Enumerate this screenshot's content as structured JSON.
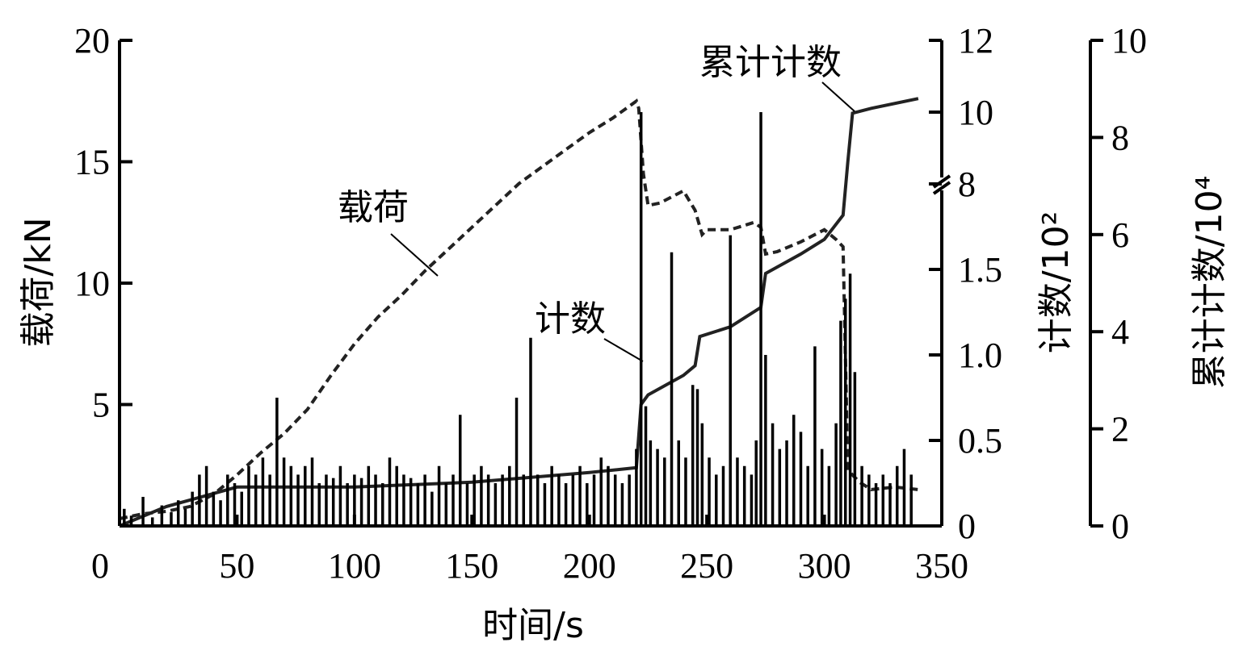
{
  "chart_data": {
    "type": "line",
    "xlabel": "时间/s",
    "xlim": [
      0,
      350
    ],
    "x_ticks": [
      "0",
      "50",
      "100",
      "150",
      "200",
      "250",
      "300",
      "350"
    ],
    "axes": {
      "left": {
        "label": "载荷/kN",
        "ylim": [
          0,
          20
        ],
        "ticks": [
          "5",
          "10",
          "15",
          "20"
        ]
      },
      "mid": {
        "label": "计数/10²",
        "ticks_lower": [
          "0",
          "0.5",
          "1.0",
          "1.5",
          "2"
        ],
        "ticks_upper": [
          "8",
          "10",
          "12"
        ],
        "break_at_tick": "8"
      },
      "right": {
        "label": "累计计数/10⁴",
        "ylim": [
          0,
          10
        ],
        "ticks": [
          "0",
          "2",
          "4",
          "6",
          "8",
          "10"
        ]
      }
    },
    "annotations": {
      "load": "载荷",
      "count": "计数",
      "cumulative": "累计计数"
    },
    "series": [
      {
        "name": "载荷",
        "axis": "left",
        "style": "dashed",
        "x": [
          0,
          10,
          20,
          30,
          40,
          50,
          60,
          70,
          80,
          90,
          100,
          110,
          120,
          130,
          140,
          150,
          160,
          170,
          180,
          190,
          200,
          210,
          220,
          221,
          223,
          225,
          230,
          240,
          245,
          248,
          250,
          260,
          270,
          273,
          275,
          280,
          290,
          300,
          305,
          308,
          310,
          315,
          320,
          330,
          340
        ],
        "y": [
          0.3,
          0.5,
          0.6,
          0.8,
          1.3,
          2.1,
          3.0,
          3.8,
          4.8,
          6.2,
          7.5,
          8.6,
          9.5,
          10.5,
          11.4,
          12.3,
          13.2,
          14.1,
          14.8,
          15.5,
          16.2,
          16.8,
          17.5,
          17.2,
          14.5,
          13.2,
          13.3,
          13.8,
          13.0,
          12.0,
          12.2,
          12.2,
          12.5,
          12.3,
          11.2,
          11.3,
          11.7,
          12.2,
          11.8,
          11.5,
          2.3,
          1.8,
          1.5,
          1.6,
          1.5
        ]
      },
      {
        "name": "累计计数",
        "axis": "right",
        "style": "solid",
        "x": [
          0,
          20,
          50,
          100,
          150,
          200,
          220,
          222,
          225,
          240,
          245,
          247,
          260,
          273,
          275,
          290,
          300,
          308,
          310,
          312,
          320,
          340
        ],
        "y": [
          0,
          0.4,
          0.8,
          0.8,
          0.9,
          1.1,
          1.2,
          2.5,
          2.7,
          3.1,
          3.3,
          3.9,
          4.1,
          4.5,
          5.2,
          5.6,
          5.9,
          6.4,
          7.5,
          8.5,
          8.6,
          8.8
        ]
      },
      {
        "name": "计数",
        "axis": "mid",
        "style": "spikes",
        "x": [
          2,
          5,
          10,
          14,
          18,
          22,
          25,
          28,
          31,
          34,
          37,
          40,
          43,
          46,
          49,
          52,
          55,
          58,
          61,
          64,
          67,
          70,
          73,
          76,
          79,
          82,
          85,
          88,
          91,
          94,
          97,
          100,
          103,
          106,
          109,
          112,
          115,
          118,
          121,
          124,
          127,
          130,
          133,
          136,
          139,
          142,
          145,
          148,
          151,
          154,
          157,
          160,
          163,
          166,
          169,
          172,
          175,
          178,
          181,
          184,
          187,
          190,
          193,
          196,
          199,
          202,
          205,
          208,
          211,
          214,
          217,
          220,
          222,
          224,
          226,
          229,
          232,
          235,
          238,
          241,
          244,
          246,
          248,
          251,
          254,
          257,
          260,
          263,
          266,
          269,
          271,
          273,
          275,
          278,
          281,
          284,
          287,
          290,
          293,
          296,
          299,
          302,
          305,
          307,
          309,
          311,
          313,
          316,
          319,
          322,
          325,
          328,
          331,
          334,
          337
        ],
        "y": [
          0.1,
          0.06,
          0.17,
          0.05,
          0.12,
          0.08,
          0.15,
          0.1,
          0.2,
          0.3,
          0.35,
          0.2,
          0.15,
          0.3,
          0.25,
          0.2,
          0.35,
          0.3,
          0.4,
          0.3,
          0.75,
          0.4,
          0.35,
          0.3,
          0.35,
          0.4,
          0.25,
          0.3,
          0.28,
          0.35,
          0.25,
          0.3,
          0.28,
          0.35,
          0.3,
          0.25,
          0.4,
          0.35,
          0.3,
          0.28,
          0.25,
          0.3,
          0.2,
          0.35,
          0.25,
          0.3,
          0.65,
          0.25,
          0.3,
          0.35,
          0.3,
          0.25,
          0.3,
          0.35,
          0.75,
          0.3,
          1.1,
          0.3,
          0.25,
          0.35,
          0.3,
          0.25,
          0.3,
          0.35,
          0.25,
          0.3,
          0.4,
          0.35,
          0.3,
          0.25,
          0.3,
          0.45,
          10.0,
          0.7,
          0.5,
          0.45,
          0.4,
          1.6,
          0.5,
          0.4,
          2.4,
          0.8,
          0.6,
          0.4,
          0.3,
          0.35,
          1.7,
          0.4,
          0.35,
          0.3,
          0.5,
          10.0,
          1.0,
          0.6,
          0.45,
          0.5,
          0.65,
          0.55,
          0.35,
          1.05,
          0.45,
          0.35,
          0.6,
          1.2,
          4.8,
          5.5,
          0.9,
          0.35,
          0.3,
          0.25,
          0.3,
          0.25,
          0.35,
          0.45,
          0.3
        ]
      }
    ],
    "grid": false,
    "legend": "none"
  }
}
